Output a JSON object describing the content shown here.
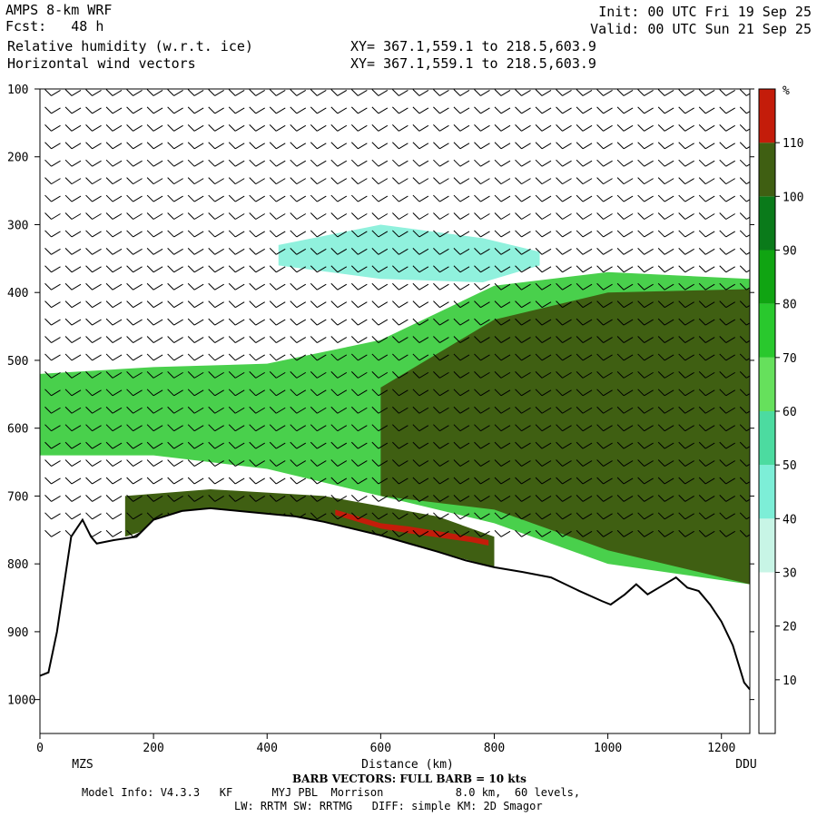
{
  "header": {
    "model": "AMPS 8-km WRF",
    "fcst": "Fcst:   48 h",
    "field1": "Relative humidity (w.r.t. ice)",
    "field2": "Horizontal wind vectors",
    "init": "Init: 00 UTC Fri 19 Sep 25",
    "valid": "Valid: 00 UTC Sun 21 Sep 25",
    "xy1": "XY= 367.1,559.1 to 218.5,603.9",
    "xy2": "XY= 367.1,559.1 to 218.5,603.9"
  },
  "footer": {
    "barb": "BARB VECTORS: FULL BARB = 10 kts",
    "model_info": "Model Info: V4.3.3   KF      MYJ PBL  Morrison           8.0 km,  60 levels,",
    "physics": "LW: RRTM SW: RRTMG   DIFF: simple KM: 2D Smagor"
  },
  "chart_data": {
    "type": "heatmap",
    "title": "Relative humidity (w.r.t. ice)",
    "xlabel": "Distance (km)",
    "ylabel": "",
    "xlim": [
      0,
      1250
    ],
    "ylim": [
      1050,
      100
    ],
    "x_ticks": [
      "0",
      "200",
      "400",
      "600",
      "800",
      "1000",
      "1200"
    ],
    "y_ticks": [
      "100",
      "200",
      "300",
      "400",
      "500",
      "600",
      "700",
      "800",
      "900",
      "1000"
    ],
    "endpoints": {
      "left": "MZS",
      "right": "DDU"
    },
    "colorbar": {
      "unit": "%",
      "ticks": [
        "10",
        "20",
        "30",
        "40",
        "50",
        "60",
        "70",
        "80",
        "90",
        "100",
        "110"
      ],
      "bins": [
        {
          "lo": 0,
          "hi": 10,
          "color": "#ffffff"
        },
        {
          "lo": 10,
          "hi": 20,
          "color": "#ffffff"
        },
        {
          "lo": 20,
          "hi": 30,
          "color": "#ffffff"
        },
        {
          "lo": 30,
          "hi": 40,
          "color": "#c8f5e6"
        },
        {
          "lo": 40,
          "hi": 50,
          "color": "#7deed7"
        },
        {
          "lo": 50,
          "hi": 60,
          "color": "#4cdba0"
        },
        {
          "lo": 60,
          "hi": 70,
          "color": "#66e05c"
        },
        {
          "lo": 70,
          "hi": 80,
          "color": "#29c82d"
        },
        {
          "lo": 80,
          "hi": 90,
          "color": "#10a412"
        },
        {
          "lo": 90,
          "hi": 100,
          "color": "#0a7a1a"
        },
        {
          "lo": 100,
          "hi": 110,
          "color": "#3f5f12"
        },
        {
          "lo": 110,
          "hi": 120,
          "color": "#c41c0a"
        }
      ]
    },
    "terrain_pressure": [
      [
        0,
        965
      ],
      [
        15,
        960
      ],
      [
        30,
        900
      ],
      [
        55,
        760
      ],
      [
        75,
        735
      ],
      [
        90,
        760
      ],
      [
        100,
        770
      ],
      [
        130,
        765
      ],
      [
        170,
        760
      ],
      [
        200,
        735
      ],
      [
        250,
        722
      ],
      [
        300,
        718
      ],
      [
        350,
        722
      ],
      [
        400,
        726
      ],
      [
        450,
        730
      ],
      [
        500,
        738
      ],
      [
        550,
        748
      ],
      [
        600,
        758
      ],
      [
        650,
        770
      ],
      [
        700,
        782
      ],
      [
        750,
        795
      ],
      [
        800,
        805
      ],
      [
        850,
        812
      ],
      [
        900,
        820
      ],
      [
        950,
        840
      ],
      [
        990,
        855
      ],
      [
        1005,
        860
      ],
      [
        1030,
        845
      ],
      [
        1050,
        830
      ],
      [
        1070,
        845
      ],
      [
        1090,
        835
      ],
      [
        1120,
        820
      ],
      [
        1140,
        835
      ],
      [
        1160,
        840
      ],
      [
        1180,
        860
      ],
      [
        1200,
        885
      ],
      [
        1220,
        920
      ],
      [
        1240,
        975
      ],
      [
        1250,
        985
      ]
    ],
    "rh_layers": [
      {
        "name": "upper moist patch",
        "x": [
          420,
          600,
          780,
          880
        ],
        "p_top": [
          330,
          300,
          320,
          340
        ],
        "p_bot": [
          360,
          380,
          385,
          360
        ],
        "rh": 40
      },
      {
        "name": "mid-level cloud deck",
        "x": [
          0,
          200,
          400,
          600,
          800,
          1000,
          1250
        ],
        "p_top": [
          520,
          510,
          505,
          470,
          390,
          370,
          380
        ],
        "p_bot": [
          640,
          640,
          660,
          700,
          740,
          800,
          830
        ],
        "rh": 70
      },
      {
        "name": "saturated core",
        "x": [
          600,
          800,
          1000,
          1250
        ],
        "p_top": [
          540,
          440,
          400,
          395
        ],
        "p_bot": [
          700,
          720,
          780,
          830
        ],
        "rh": 105
      },
      {
        "name": "near-surface saturated layer",
        "x": [
          150,
          300,
          500,
          700,
          800
        ],
        "p_top": [
          700,
          690,
          700,
          730,
          760
        ],
        "p_bot": [
          760,
          720,
          738,
          782,
          805
        ],
        "rh": 105
      },
      {
        "name": "supersaturation spots",
        "x": [
          520,
          560,
          600,
          650,
          760,
          790
        ],
        "p_top": [
          720,
          730,
          740,
          745,
          760,
          765
        ],
        "p_bot": [
          728,
          738,
          748,
          755,
          768,
          773
        ],
        "rh": 115
      }
    ],
    "wind_barbs": "10 kt full barb"
  }
}
